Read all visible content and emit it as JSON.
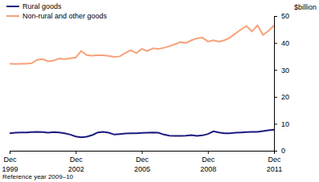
{
  "chart_data": {
    "type": "line",
    "y_label": "$billion",
    "footnote": "Reference year 2009–10",
    "categories": [
      "Dec 1999",
      null,
      null,
      null,
      null,
      null,
      null,
      null,
      null,
      null,
      null,
      null,
      "Dec 2002",
      null,
      null,
      null,
      null,
      null,
      null,
      null,
      null,
      null,
      null,
      null,
      "Dec 2005",
      null,
      null,
      null,
      null,
      null,
      null,
      null,
      null,
      null,
      null,
      null,
      "Dec 2008",
      null,
      null,
      null,
      null,
      null,
      null,
      null,
      null,
      null,
      null,
      null,
      "Dec 2011"
    ],
    "series": [
      {
        "name": "Rural goods",
        "color": "#1a1a80",
        "values": [
          6.5,
          6.7,
          6.8,
          6.8,
          6.9,
          7.0,
          6.9,
          6.7,
          6.9,
          6.8,
          6.5,
          6.0,
          5.3,
          5.0,
          5.2,
          5.8,
          6.8,
          7.0,
          6.7,
          6.0,
          6.2,
          6.4,
          6.5,
          6.5,
          6.6,
          6.7,
          6.8,
          6.7,
          6.0,
          5.6,
          5.5,
          5.5,
          5.6,
          5.8,
          5.5,
          5.7,
          6.2,
          7.2,
          6.8,
          6.5,
          6.5,
          6.7,
          6.8,
          6.9,
          7.0,
          7.0,
          7.3,
          7.6,
          7.8
        ]
      },
      {
        "name": "Non-rural and other goods",
        "color": "#f5a27a",
        "values": [
          32.3,
          32.2,
          32.3,
          32.3,
          32.5,
          33.8,
          34.0,
          33.2,
          33.5,
          34.2,
          34.0,
          34.3,
          34.6,
          37.0,
          35.5,
          35.3,
          35.5,
          35.4,
          35.2,
          34.8,
          35.0,
          36.3,
          37.3,
          36.2,
          37.8,
          37.0,
          38.0,
          37.8,
          38.2,
          38.8,
          39.5,
          40.3,
          40.0,
          41.0,
          41.7,
          42.0,
          40.5,
          41.0,
          40.5,
          41.0,
          42.0,
          43.5,
          45.0,
          46.3,
          44.3,
          46.5,
          43.0,
          44.5,
          46.5
        ]
      }
    ],
    "ylim": [
      0,
      50
    ],
    "yticks": [
      0,
      10,
      20,
      30,
      40,
      50
    ],
    "legend": "top-left",
    "grid": false
  }
}
